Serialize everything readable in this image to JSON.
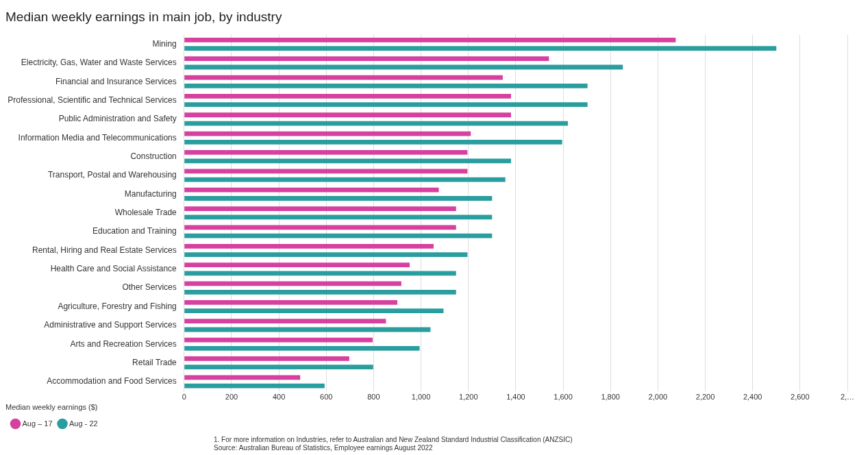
{
  "chart_data": {
    "type": "bar",
    "orientation": "horizontal",
    "title": "Median weekly earnings in main job, by industry",
    "legend_title": "Median weekly earnings ($)",
    "legend": "bottom left",
    "grid": "x",
    "categories": [
      "Mining",
      "Electricity, Gas, Water and Waste Services",
      "Financial and Insurance Services",
      "Professional, Scientific and Technical Services",
      "Public Administration and Safety",
      "Information Media and Telecommunications",
      "Construction",
      "Transport, Postal and Warehousing",
      "Manufacturing",
      "Wholesale Trade",
      "Education and Training",
      "Rental, Hiring and Real Estate Services",
      "Health Care and Social Assistance",
      "Other Services",
      "Agriculture, Forestry and Fishing",
      "Administrative and Support Services",
      "Arts and Recreation Services",
      "Retail Trade",
      "Accommodation and Food Services"
    ],
    "series": [
      {
        "name": "Aug – 17",
        "color": "#d6409f",
        "values": [
          2075,
          1540,
          1345,
          1380,
          1380,
          1210,
          1196,
          1196,
          1075,
          1148,
          1148,
          1053,
          952,
          917,
          900,
          852,
          796,
          697,
          490
        ]
      },
      {
        "name": "Aug - 22",
        "color": "#2a9d9f",
        "values": [
          2500,
          1852,
          1703,
          1703,
          1620,
          1596,
          1380,
          1356,
          1300,
          1300,
          1300,
          1196,
          1148,
          1148,
          1095,
          1040,
          994,
          798,
          593
        ]
      }
    ],
    "xlim": [
      0,
      2800
    ],
    "xticks": [
      0,
      200,
      400,
      600,
      800,
      {
        "value": 1000,
        "label": "1,000"
      },
      {
        "value": 1200,
        "label": "1,200"
      },
      {
        "value": 1400,
        "label": "1,400"
      },
      {
        "value": 1600,
        "label": "1,600"
      },
      {
        "value": 1800,
        "label": "1,800"
      },
      {
        "value": 2000,
        "label": "2,000"
      },
      {
        "value": 2200,
        "label": "2,200"
      },
      {
        "value": 2400,
        "label": "2,400"
      },
      {
        "value": 2600,
        "label": "2,600"
      },
      {
        "value": 2800,
        "label": "2,…"
      }
    ],
    "annotations": [
      "1. For more information on Industries, refer to Australian and New Zealand Standard Industrial Classification (ANZSIC)",
      "Source: Australian Bureau of Statistics, Employee earnings August 2022"
    ]
  }
}
